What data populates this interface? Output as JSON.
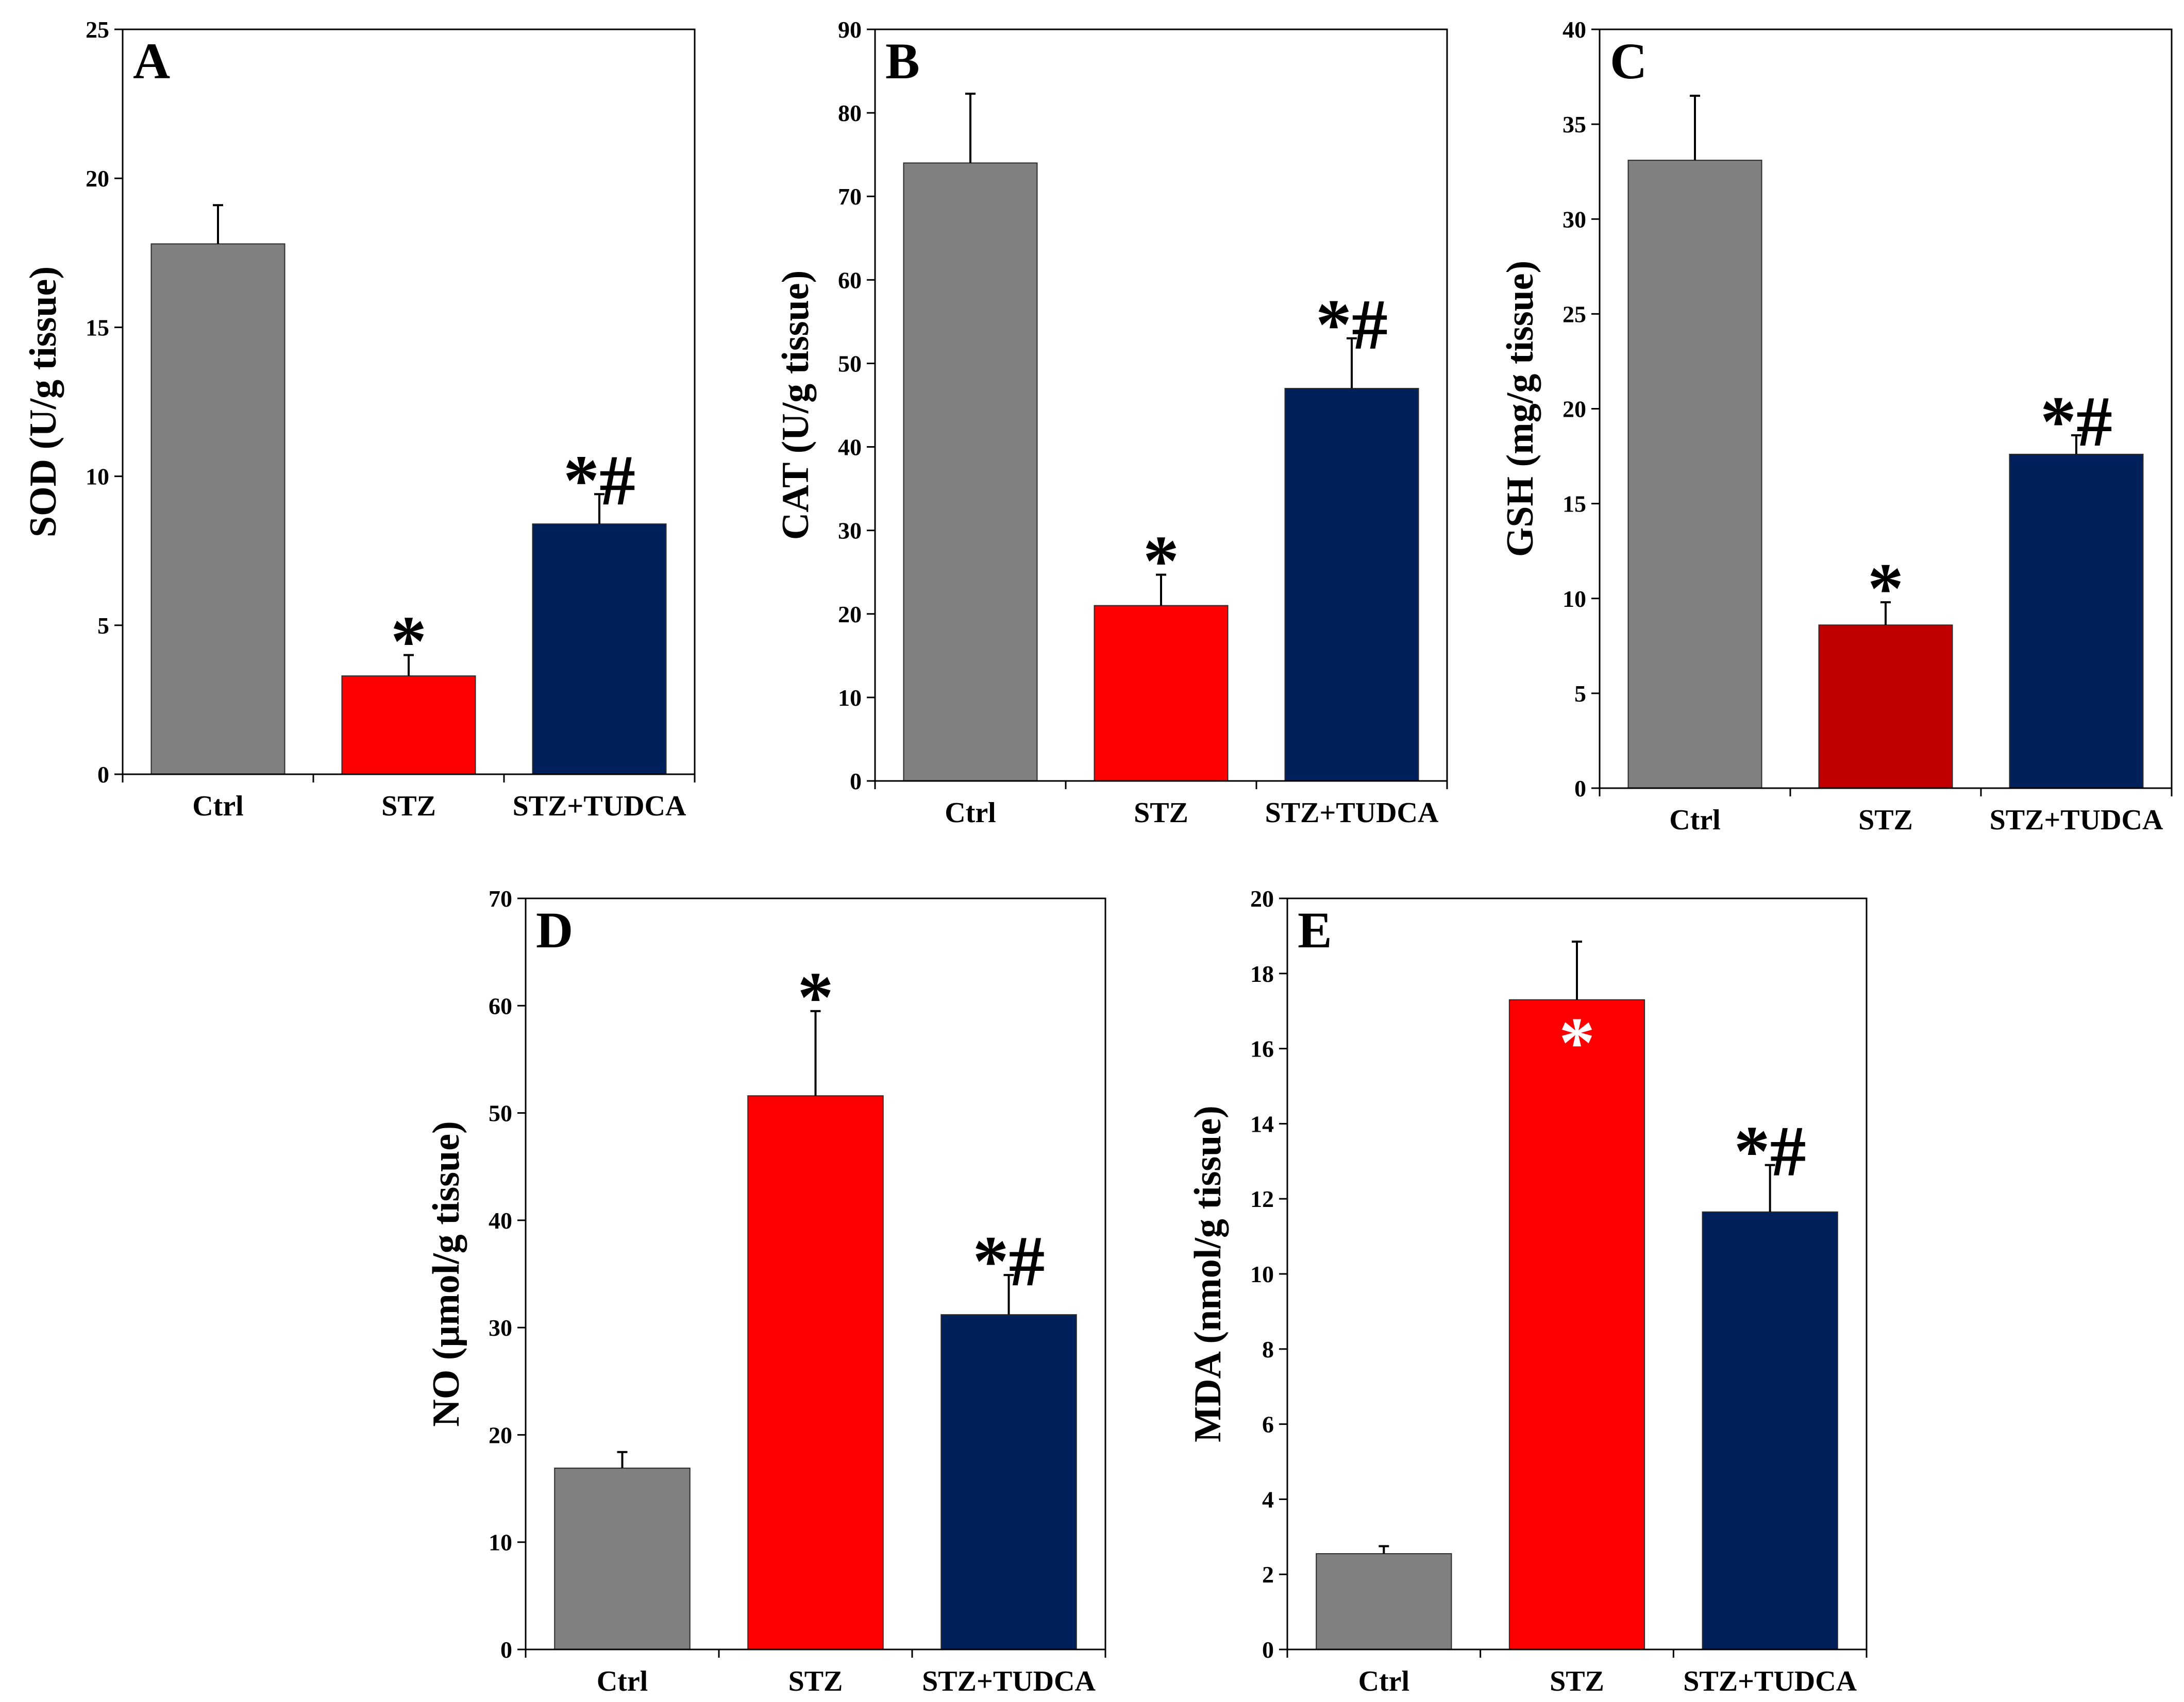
{
  "chart_data": [
    {
      "type": "bar",
      "panel": "A",
      "ylabel": "SOD (U/g tissue)",
      "ylim": [
        0,
        25
      ],
      "yticks": [
        0,
        5,
        10,
        15,
        20,
        25
      ],
      "categories": [
        "Ctrl",
        "STZ",
        "STZ+TUDCA"
      ],
      "values": [
        17.8,
        3.3,
        8.4
      ],
      "errors": [
        1.3,
        0.7,
        1.0
      ],
      "colors": [
        "#808080",
        "#ff0000",
        "#00205b"
      ],
      "annotations": [
        "",
        "*",
        "*#"
      ],
      "annotation_colors": [
        "#000000",
        "#000000",
        "#000000"
      ]
    },
    {
      "type": "bar",
      "panel": "B",
      "ylabel": "CAT (U/g tissue)",
      "ylim": [
        0,
        90
      ],
      "yticks": [
        0,
        10,
        20,
        30,
        40,
        50,
        60,
        70,
        80,
        90
      ],
      "categories": [
        "Ctrl",
        "STZ",
        "STZ+TUDCA"
      ],
      "values": [
        74,
        21,
        47
      ],
      "errors": [
        8.3,
        3.7,
        6.0
      ],
      "colors": [
        "#808080",
        "#ff0000",
        "#00205b"
      ],
      "annotations": [
        "",
        "*",
        "*#"
      ],
      "annotation_colors": [
        "#000000",
        "#000000",
        "#000000"
      ]
    },
    {
      "type": "bar",
      "panel": "C",
      "ylabel": "GSH (mg/g tissue)",
      "ylim": [
        0,
        40
      ],
      "yticks": [
        0,
        5,
        10,
        15,
        20,
        25,
        30,
        35,
        40
      ],
      "categories": [
        "Ctrl",
        "STZ",
        "STZ+TUDCA"
      ],
      "values": [
        33.1,
        8.6,
        17.6
      ],
      "errors": [
        3.4,
        1.2,
        1.0
      ],
      "colors": [
        "#808080",
        "#c00000",
        "#00205b"
      ],
      "annotations": [
        "",
        "*",
        "*#"
      ],
      "annotation_colors": [
        "#000000",
        "#000000",
        "#000000"
      ]
    },
    {
      "type": "bar",
      "panel": "D",
      "ylabel": "NO (µmol/g tissue)",
      "ylim": [
        0,
        70
      ],
      "yticks": [
        0,
        10,
        20,
        30,
        40,
        50,
        60,
        70
      ],
      "categories": [
        "Ctrl",
        "STZ",
        "STZ+TUDCA"
      ],
      "values": [
        16.9,
        51.6,
        31.2
      ],
      "errors": [
        1.5,
        7.9,
        3.7
      ],
      "colors": [
        "#808080",
        "#ff0000",
        "#00205b"
      ],
      "annotations": [
        "",
        "*",
        "*#"
      ],
      "annotation_colors": [
        "#000000",
        "#000000",
        "#000000"
      ]
    },
    {
      "type": "bar",
      "panel": "E",
      "ylabel": "MDA (nmol/g tissue)",
      "ylim": [
        0,
        20
      ],
      "yticks": [
        0,
        2,
        4,
        6,
        8,
        10,
        12,
        14,
        16,
        18,
        20
      ],
      "categories": [
        "Ctrl",
        "STZ",
        "STZ+TUDCA"
      ],
      "values": [
        2.55,
        17.3,
        11.65
      ],
      "errors": [
        0.2,
        1.55,
        1.25
      ],
      "colors": [
        "#808080",
        "#ff0000",
        "#00205b"
      ],
      "annotations": [
        "",
        "*",
        "*#"
      ],
      "annotation_colors": [
        "#000000",
        "#ffffff",
        "#000000"
      ]
    }
  ]
}
